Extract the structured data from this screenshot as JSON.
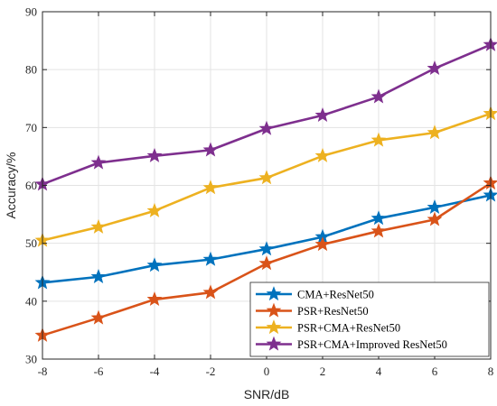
{
  "chart_data": {
    "type": "line",
    "title": "",
    "xlabel": "SNR/dB",
    "ylabel": "Accuracy/%",
    "x": [
      -8,
      -6,
      -4,
      -2,
      0,
      2,
      4,
      6,
      8
    ],
    "xlim": [
      -8,
      8
    ],
    "ylim": [
      30,
      90
    ],
    "xticks": [
      -8,
      -6,
      -4,
      -2,
      0,
      2,
      4,
      6,
      8
    ],
    "yticks": [
      30,
      40,
      50,
      60,
      70,
      80,
      90
    ],
    "grid": true,
    "legend_position": "bottom-right",
    "marker": "star",
    "series": [
      {
        "name": "CMA+ResNet50",
        "color": "#0072BD",
        "values": [
          43.2,
          44.2,
          46.2,
          47.2,
          49.0,
          51.1,
          54.3,
          56.2,
          58.3
        ]
      },
      {
        "name": "PSR+ResNet50",
        "color": "#D95319",
        "values": [
          34.1,
          37.1,
          40.3,
          41.5,
          46.5,
          49.8,
          52.1,
          54.1,
          60.4
        ]
      },
      {
        "name": "PSR+CMA+ResNet50",
        "color": "#EDB120",
        "values": [
          50.5,
          52.8,
          55.6,
          59.6,
          61.3,
          65.1,
          67.8,
          69.1,
          72.4
        ]
      },
      {
        "name": "PSR+CMA+Improved ResNet50",
        "color": "#7E2F8E",
        "values": [
          60.2,
          63.9,
          65.1,
          66.1,
          69.8,
          72.1,
          75.3,
          80.2,
          84.3
        ]
      }
    ]
  }
}
